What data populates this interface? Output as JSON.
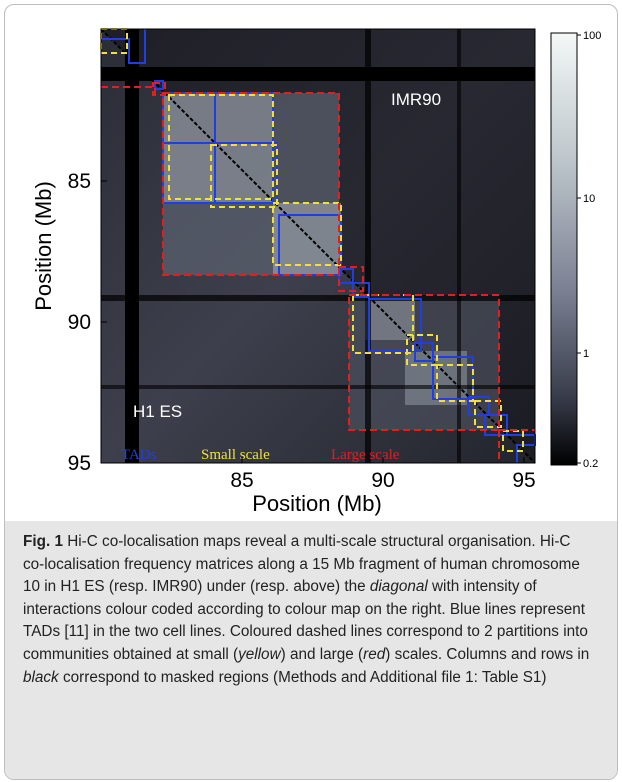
{
  "figure": {
    "axes": {
      "ylabel": "Position (Mb)",
      "xlabel": "Position (Mb)",
      "x_ticks": [
        "85",
        "90",
        "95"
      ],
      "y_ticks": [
        "85",
        "90",
        "95"
      ]
    },
    "matrix_labels": {
      "upper": "IMR90",
      "lower": "H1 ES"
    },
    "legend": {
      "tads": "TADs",
      "small": "Small scale",
      "large": "Large scale"
    },
    "colorbar": {
      "ticks": [
        "100",
        "10",
        "1",
        "0.2"
      ],
      "scale": "log"
    },
    "colors": {
      "tads": "#1f3fe0",
      "small_scale": "#f2e03a",
      "large_scale": "#e0201e",
      "diagonal": "#000000"
    }
  },
  "caption": {
    "label": "Fig. 1",
    "t1": " Hi-C co-localisation maps reveal a multi-scale structural organisation. Hi-C co-localisation frequency matrices along a 15 Mb fragment of human chromosome 10 in H1 ES (resp. IMR90) under (resp. above) the ",
    "i1": "diagonal",
    "t2": " with intensity of interactions colour coded according to colour map on the right. Blue lines represent TADs [11] in the two cell lines. Coloured dashed lines correspond to 2 partitions into communities obtained at small (",
    "i2": "yellow",
    "t3": ") and large (",
    "i3": "red",
    "t4": ") scales. Columns and rows in ",
    "i4": "black",
    "t5": " correspond to masked regions (Methods and Additional file 1: Table S1)"
  }
}
